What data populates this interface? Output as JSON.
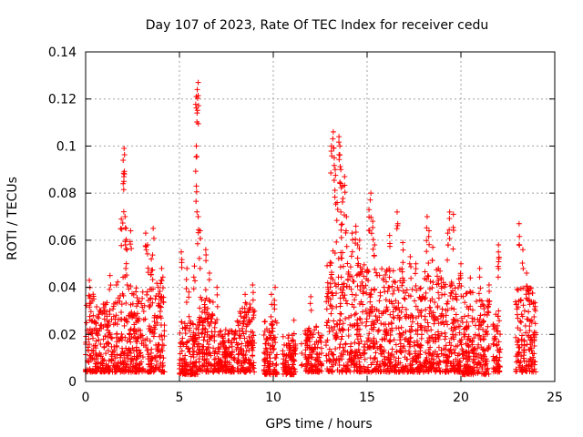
{
  "chart_data": {
    "type": "scatter",
    "title": "Day 107 of 2023, Rate Of TEC Index for receiver cedu",
    "xlabel": "GPS time / hours",
    "ylabel": "ROTI / TECUs",
    "xlim": [
      0,
      25
    ],
    "ylim": [
      0,
      0.14
    ],
    "xticks": [
      "0",
      "5",
      "10",
      "15",
      "20",
      "25"
    ],
    "xtick_values": [
      0,
      5,
      10,
      15,
      20,
      25
    ],
    "yticks": [
      "0",
      "0.02",
      "0.04",
      "0.06",
      "0.08",
      "0.1",
      "0.12",
      "0.14"
    ],
    "ytick_values": [
      0,
      0.02,
      0.04,
      0.06,
      0.08,
      0.1,
      0.12,
      0.14
    ],
    "grid": true,
    "marker": "plus",
    "series_color": "#ff0000",
    "envelope": [
      {
        "x": [
          0.0,
          0.5
        ],
        "ymin": 0.004,
        "ymax": 0.038
      },
      {
        "x": [
          0.5,
          1.5
        ],
        "ymin": 0.004,
        "ymax": 0.034
      },
      {
        "x": [
          1.5,
          2.5
        ],
        "ymin": 0.004,
        "ymax": 0.045
      },
      {
        "x": [
          2.5,
          3.5
        ],
        "ymin": 0.004,
        "ymax": 0.04
      },
      {
        "x": [
          3.5,
          4.2
        ],
        "ymin": 0.004,
        "ymax": 0.045
      },
      {
        "x": [
          5.0,
          6.0
        ],
        "ymin": 0.003,
        "ymax": 0.026
      },
      {
        "x": [
          6.0,
          7.0
        ],
        "ymin": 0.004,
        "ymax": 0.036
      },
      {
        "x": [
          7.0,
          8.0
        ],
        "ymin": 0.004,
        "ymax": 0.022
      },
      {
        "x": [
          8.0,
          9.0
        ],
        "ymin": 0.004,
        "ymax": 0.033
      },
      {
        "x": [
          9.5,
          10.2
        ],
        "ymin": 0.003,
        "ymax": 0.026
      },
      {
        "x": [
          10.5,
          11.2
        ],
        "ymin": 0.003,
        "ymax": 0.02
      },
      {
        "x": [
          11.7,
          12.6
        ],
        "ymin": 0.004,
        "ymax": 0.024
      },
      {
        "x": [
          12.8,
          14.0
        ],
        "ymin": 0.004,
        "ymax": 0.056
      },
      {
        "x": [
          14.0,
          15.0
        ],
        "ymin": 0.004,
        "ymax": 0.05
      },
      {
        "x": [
          15.0,
          16.0
        ],
        "ymin": 0.004,
        "ymax": 0.048
      },
      {
        "x": [
          16.0,
          17.0
        ],
        "ymin": 0.004,
        "ymax": 0.048
      },
      {
        "x": [
          17.0,
          18.0
        ],
        "ymin": 0.004,
        "ymax": 0.04
      },
      {
        "x": [
          18.0,
          19.0
        ],
        "ymin": 0.004,
        "ymax": 0.048
      },
      {
        "x": [
          19.0,
          20.0
        ],
        "ymin": 0.004,
        "ymax": 0.045
      },
      {
        "x": [
          20.0,
          21.0
        ],
        "ymin": 0.003,
        "ymax": 0.038
      },
      {
        "x": [
          21.0,
          21.5
        ],
        "ymin": 0.003,
        "ymax": 0.036
      },
      {
        "x": [
          21.7,
          22.1
        ],
        "ymin": 0.004,
        "ymax": 0.03
      },
      {
        "x": [
          22.9,
          24.0
        ],
        "ymin": 0.004,
        "ymax": 0.04
      }
    ],
    "peaks": [
      {
        "x": 0.2,
        "y": 0.043
      },
      {
        "x": 1.3,
        "y": 0.045
      },
      {
        "x": 1.9,
        "y": 0.069
      },
      {
        "x": 2.0,
        "y": 0.084
      },
      {
        "x": 2.0,
        "y": 0.094
      },
      {
        "x": 2.05,
        "y": 0.099
      },
      {
        "x": 2.1,
        "y": 0.07
      },
      {
        "x": 2.15,
        "y": 0.065
      },
      {
        "x": 2.2,
        "y": 0.056
      },
      {
        "x": 2.4,
        "y": 0.064
      },
      {
        "x": 3.2,
        "y": 0.063
      },
      {
        "x": 3.3,
        "y": 0.058
      },
      {
        "x": 3.6,
        "y": 0.065
      },
      {
        "x": 3.5,
        "y": 0.052
      },
      {
        "x": 4.05,
        "y": 0.048
      },
      {
        "x": 5.1,
        "y": 0.055
      },
      {
        "x": 5.4,
        "y": 0.048
      },
      {
        "x": 5.5,
        "y": 0.038
      },
      {
        "x": 5.8,
        "y": 0.049
      },
      {
        "x": 5.9,
        "y": 0.083
      },
      {
        "x": 5.9,
        "y": 0.1
      },
      {
        "x": 5.9,
        "y": 0.121
      },
      {
        "x": 5.95,
        "y": 0.124
      },
      {
        "x": 6.0,
        "y": 0.127
      },
      {
        "x": 6.0,
        "y": 0.07
      },
      {
        "x": 6.1,
        "y": 0.064
      },
      {
        "x": 6.4,
        "y": 0.056
      },
      {
        "x": 6.6,
        "y": 0.046
      },
      {
        "x": 7.0,
        "y": 0.04
      },
      {
        "x": 8.5,
        "y": 0.037
      },
      {
        "x": 8.9,
        "y": 0.041
      },
      {
        "x": 9.9,
        "y": 0.037
      },
      {
        "x": 10.1,
        "y": 0.04
      },
      {
        "x": 11.1,
        "y": 0.026
      },
      {
        "x": 11.5,
        "y": 0.016
      },
      {
        "x": 12.0,
        "y": 0.036
      },
      {
        "x": 13.1,
        "y": 0.1
      },
      {
        "x": 13.2,
        "y": 0.106
      },
      {
        "x": 13.25,
        "y": 0.095
      },
      {
        "x": 13.3,
        "y": 0.09
      },
      {
        "x": 13.4,
        "y": 0.076
      },
      {
        "x": 13.5,
        "y": 0.104
      },
      {
        "x": 13.55,
        "y": 0.1
      },
      {
        "x": 13.6,
        "y": 0.09
      },
      {
        "x": 13.7,
        "y": 0.083
      },
      {
        "x": 13.8,
        "y": 0.087
      },
      {
        "x": 13.6,
        "y": 0.072
      },
      {
        "x": 13.9,
        "y": 0.07
      },
      {
        "x": 14.2,
        "y": 0.063
      },
      {
        "x": 14.4,
        "y": 0.066
      },
      {
        "x": 14.5,
        "y": 0.058
      },
      {
        "x": 14.6,
        "y": 0.06
      },
      {
        "x": 15.1,
        "y": 0.073
      },
      {
        "x": 15.2,
        "y": 0.08
      },
      {
        "x": 15.3,
        "y": 0.068
      },
      {
        "x": 15.4,
        "y": 0.058
      },
      {
        "x": 16.2,
        "y": 0.062
      },
      {
        "x": 16.6,
        "y": 0.072
      },
      {
        "x": 16.9,
        "y": 0.059
      },
      {
        "x": 17.3,
        "y": 0.053
      },
      {
        "x": 17.6,
        "y": 0.05
      },
      {
        "x": 18.2,
        "y": 0.07
      },
      {
        "x": 18.3,
        "y": 0.064
      },
      {
        "x": 18.5,
        "y": 0.057
      },
      {
        "x": 18.8,
        "y": 0.048
      },
      {
        "x": 19.3,
        "y": 0.063
      },
      {
        "x": 19.4,
        "y": 0.072
      },
      {
        "x": 19.6,
        "y": 0.071
      },
      {
        "x": 20.0,
        "y": 0.05
      },
      {
        "x": 20.5,
        "y": 0.044
      },
      {
        "x": 21.0,
        "y": 0.048
      },
      {
        "x": 21.5,
        "y": 0.041
      },
      {
        "x": 22.0,
        "y": 0.058
      },
      {
        "x": 22.0,
        "y": 0.055
      },
      {
        "x": 23.1,
        "y": 0.067
      },
      {
        "x": 23.3,
        "y": 0.056
      },
      {
        "x": 23.5,
        "y": 0.046
      }
    ]
  }
}
